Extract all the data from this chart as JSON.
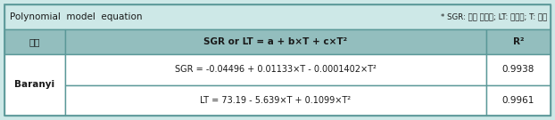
{
  "title_left": "Polynomial  model  equation",
  "title_right": "* SGR: 최대 성장률; LT: 유도기; T: 온도",
  "header_col1": "모델",
  "header_col2": "SGR or LT = a + b×T + c×T²",
  "header_col3": "R²",
  "row_label": "Baranyi",
  "row1_eq": "SGR = -0.04496 + 0.01133×T - 0.0001402×T²",
  "row1_r2": "0.9938",
  "row2_eq": "LT = 73.19 - 5.639×T + 0.1099×T²",
  "row2_r2": "0.9961",
  "bg_title": "#cde8e7",
  "bg_header": "#93bebe",
  "bg_data": "#ffffff",
  "border_color": "#5a9898",
  "fig_bg": "#cde8e7"
}
